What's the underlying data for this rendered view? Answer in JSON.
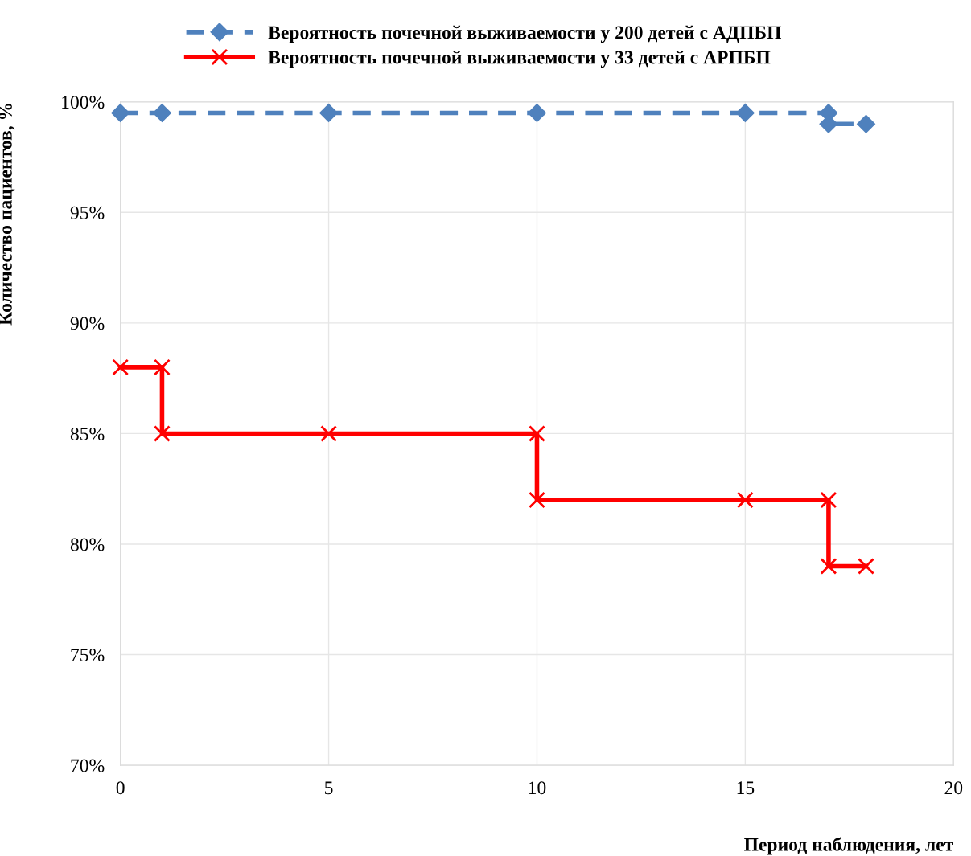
{
  "chart_data": {
    "type": "line",
    "xlabel": "Период наблюдения, лет",
    "ylabel": "Количество пациентов, %",
    "xlim": [
      0,
      20
    ],
    "xticks": [
      0,
      5,
      10,
      15,
      20
    ],
    "ylim": [
      70,
      100
    ],
    "yticks": [
      {
        "value": 70,
        "label": "70%"
      },
      {
        "value": 75,
        "label": "75%"
      },
      {
        "value": 80,
        "label": "80%"
      },
      {
        "value": 85,
        "label": "85%"
      },
      {
        "value": 90,
        "label": "90%"
      },
      {
        "value": 95,
        "label": "95%"
      },
      {
        "value": 100,
        "label": "100%"
      }
    ],
    "grid": true,
    "legend": "top",
    "series": [
      {
        "name": "Вероятность почечной выживаемости у 200 детей с АДПБП",
        "color": "#4f81bd",
        "marker": "diamond",
        "line_style": "dashed",
        "x": [
          0,
          1,
          5,
          10,
          15,
          17,
          17,
          17.9
        ],
        "values": [
          99.5,
          99.5,
          99.5,
          99.5,
          99.5,
          99.5,
          99.0,
          99.0
        ]
      },
      {
        "name": "Вероятность почечной выживаемости у 33 детей с АРПБП",
        "color": "#ff0000",
        "marker": "cross",
        "line_style": "solid",
        "x": [
          0,
          1,
          1,
          5,
          10,
          10,
          15,
          17,
          17,
          17.9
        ],
        "values": [
          88,
          88,
          85,
          85,
          85,
          82,
          82,
          82,
          79,
          79
        ]
      }
    ]
  }
}
